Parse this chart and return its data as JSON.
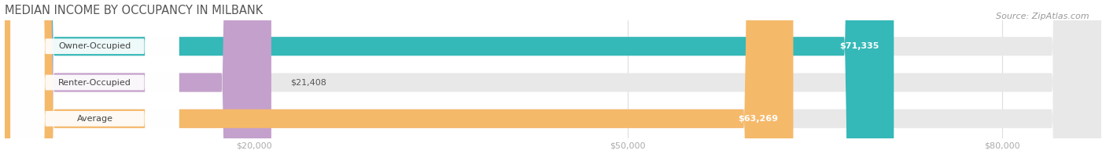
{
  "title": "MEDIAN INCOME BY OCCUPANCY IN MILBANK",
  "source": "Source: ZipAtlas.com",
  "categories": [
    "Owner-Occupied",
    "Renter-Occupied",
    "Average"
  ],
  "values": [
    71335,
    21408,
    63269
  ],
  "bar_colors": [
    "#35b8b8",
    "#c4a0cc",
    "#f5b96a"
  ],
  "bar_labels": [
    "$71,335",
    "$21,408",
    "$63,269"
  ],
  "label_colors": [
    "#ffffff",
    "#666666",
    "#ffffff"
  ],
  "xlim": [
    0,
    88000
  ],
  "xticks": [
    20000,
    50000,
    80000
  ],
  "xtick_labels": [
    "$20,000",
    "$50,000",
    "$80,000"
  ],
  "background_color": "#ffffff",
  "bar_bg_color": "#e8e8e8",
  "title_fontsize": 10.5,
  "source_fontsize": 8,
  "label_fontsize": 8,
  "tick_fontsize": 8,
  "cat_fontsize": 8
}
